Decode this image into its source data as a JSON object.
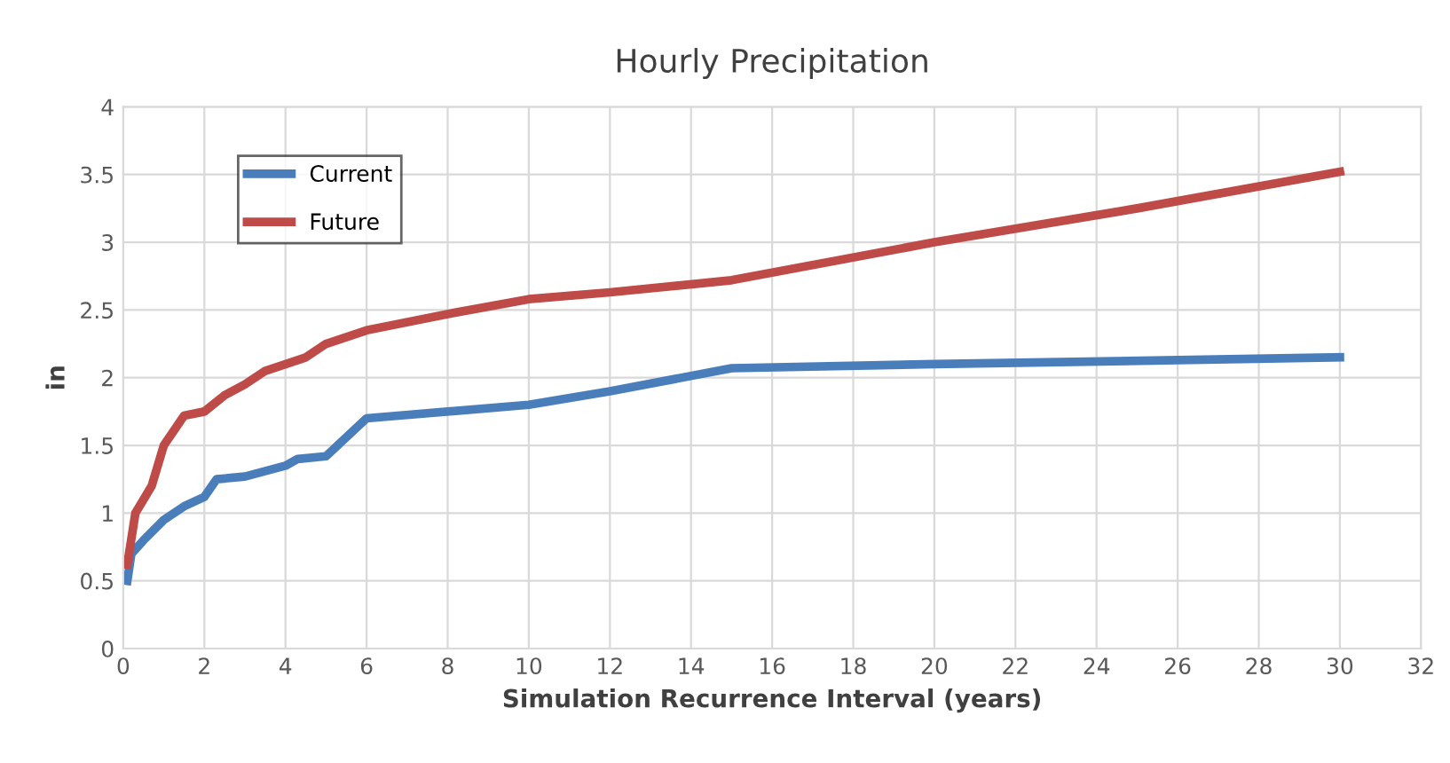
{
  "chart_data": {
    "type": "line",
    "title": "Hourly Precipitation",
    "xlabel": "Simulation Recurrence Interval (years)",
    "ylabel": "in",
    "series": [
      {
        "name": "Current",
        "color": "#4a7ebb",
        "x": [
          0.1,
          0.2,
          0.5,
          1,
          1.5,
          2,
          2.3,
          3,
          4,
          4.3,
          5,
          6,
          10,
          12,
          15,
          20,
          30
        ],
        "values": [
          0.5,
          0.7,
          0.8,
          0.95,
          1.05,
          1.12,
          1.25,
          1.27,
          1.35,
          1.4,
          1.42,
          1.7,
          1.8,
          1.9,
          2.07,
          2.1,
          2.15
        ]
      },
      {
        "name": "Future",
        "color": "#be4b48",
        "x": [
          0.1,
          0.3,
          0.7,
          1,
          1.5,
          2,
          2.5,
          3,
          3.5,
          4.5,
          5,
          6,
          8,
          10,
          12,
          15,
          20,
          25,
          30
        ],
        "values": [
          0.62,
          1.0,
          1.2,
          1.5,
          1.72,
          1.75,
          1.87,
          1.95,
          2.05,
          2.15,
          2.25,
          2.35,
          2.47,
          2.58,
          2.63,
          2.72,
          3.0,
          3.25,
          3.52
        ]
      }
    ],
    "xlim": [
      0,
      32
    ],
    "xticks": [
      0,
      2,
      4,
      6,
      8,
      10,
      12,
      14,
      16,
      18,
      20,
      22,
      24,
      26,
      28,
      30,
      32
    ],
    "ylim": [
      0,
      4
    ],
    "yticks": [
      0,
      0.5,
      1,
      1.5,
      2,
      2.5,
      3,
      3.5,
      4
    ],
    "grid": true,
    "legend": "top left",
    "marker": "none",
    "line_style": "solid"
  }
}
